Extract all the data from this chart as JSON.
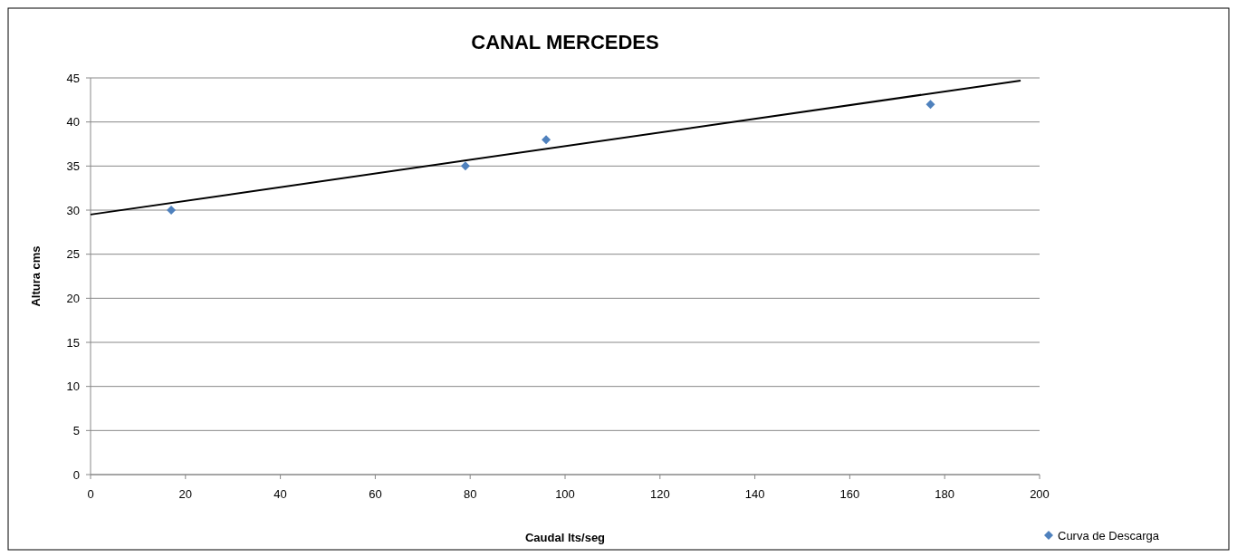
{
  "chart_data": {
    "type": "scatter",
    "title": "CANAL MERCEDES",
    "xlabel": "Caudal lts/seg",
    "ylabel": "Altura cms",
    "xlim": [
      0,
      200
    ],
    "xticks": [
      0,
      20,
      40,
      60,
      80,
      100,
      120,
      140,
      160,
      180,
      200
    ],
    "ylim": [
      0,
      45
    ],
    "yticks": [
      0,
      5,
      10,
      15,
      20,
      25,
      30,
      35,
      40,
      45
    ],
    "grid": "y",
    "legend": "bottom right",
    "series": [
      {
        "name": "Curva de Descarga",
        "color": "#4f81bd",
        "marker": "diamond",
        "x": [
          17,
          79,
          96,
          177
        ],
        "values": [
          30,
          35,
          38,
          42
        ]
      },
      {
        "type": "line",
        "color": "#000000",
        "x": [
          0,
          196
        ],
        "values": [
          29.5,
          44.7
        ],
        "line_style": "solid",
        "marker": "none"
      }
    ]
  }
}
